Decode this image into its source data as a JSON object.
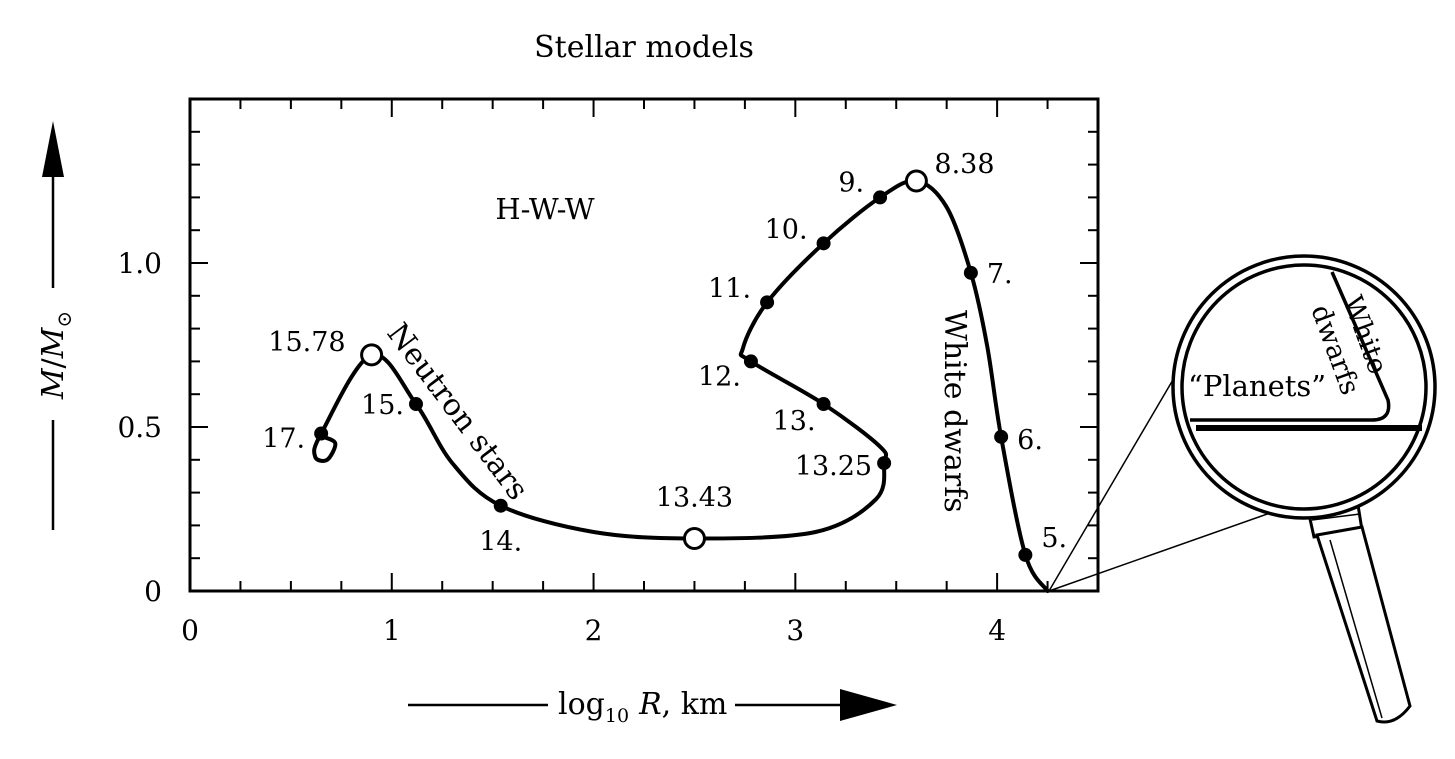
{
  "chart_data": {
    "type": "line",
    "title": "Stellar models",
    "model_label": "H-W-W",
    "xlabel": {
      "prefix": "log",
      "sub": "10",
      "var": "R",
      "unit": ", km"
    },
    "ylabel": {
      "var": "M",
      "slash": "/",
      "var2": "M",
      "sub": "⊙"
    },
    "xlim": [
      0,
      4.5
    ],
    "ylim": [
      0,
      1.5
    ],
    "x_ticks": [
      0,
      1,
      2,
      3,
      4
    ],
    "x_tick_labels": [
      "0",
      "1",
      "2",
      "3",
      "4"
    ],
    "y_ticks": [
      0,
      0.5,
      1.0
    ],
    "y_tick_labels": [
      "0",
      "0.5",
      "1.0"
    ],
    "x_minor_step": 0.25,
    "y_minor_step": 0.1,
    "curve": [
      [
        4.25,
        0.0
      ],
      [
        4.14,
        0.11
      ],
      [
        4.02,
        0.47
      ],
      [
        3.95,
        0.75
      ],
      [
        3.87,
        0.97
      ],
      [
        3.75,
        1.17
      ],
      [
        3.6,
        1.25
      ],
      [
        3.42,
        1.2
      ],
      [
        3.14,
        1.06
      ],
      [
        2.86,
        0.88
      ],
      [
        2.74,
        0.74
      ],
      [
        2.78,
        0.7
      ],
      [
        3.14,
        0.57
      ],
      [
        3.42,
        0.44
      ],
      [
        3.44,
        0.39
      ],
      [
        3.4,
        0.28
      ],
      [
        3.1,
        0.18
      ],
      [
        2.5,
        0.16
      ],
      [
        2.0,
        0.18
      ],
      [
        1.54,
        0.26
      ],
      [
        1.3,
        0.39
      ],
      [
        1.12,
        0.57
      ],
      [
        0.9,
        0.72
      ],
      [
        0.65,
        0.48
      ],
      [
        0.62,
        0.41
      ],
      [
        0.68,
        0.4
      ],
      [
        0.72,
        0.45
      ],
      [
        0.66,
        0.47
      ]
    ],
    "points": [
      {
        "label": "5.",
        "x": 4.14,
        "y": 0.11,
        "kind": "filled"
      },
      {
        "label": "6.",
        "x": 4.02,
        "y": 0.47,
        "kind": "filled"
      },
      {
        "label": "7.",
        "x": 3.87,
        "y": 0.97,
        "kind": "filled"
      },
      {
        "label": "8.38",
        "x": 3.6,
        "y": 1.25,
        "kind": "open"
      },
      {
        "label": "9.",
        "x": 3.42,
        "y": 1.2,
        "kind": "filled"
      },
      {
        "label": "10.",
        "x": 3.14,
        "y": 1.06,
        "kind": "filled"
      },
      {
        "label": "11.",
        "x": 2.86,
        "y": 0.88,
        "kind": "filled"
      },
      {
        "label": "12.",
        "x": 2.78,
        "y": 0.7,
        "kind": "filled"
      },
      {
        "label": "13.",
        "x": 3.14,
        "y": 0.57,
        "kind": "filled"
      },
      {
        "label": "13.25",
        "x": 3.44,
        "y": 0.39,
        "kind": "filled"
      },
      {
        "label": "13.43",
        "x": 2.5,
        "y": 0.16,
        "kind": "open"
      },
      {
        "label": "14.",
        "x": 1.54,
        "y": 0.26,
        "kind": "filled"
      },
      {
        "label": "15.",
        "x": 1.12,
        "y": 0.57,
        "kind": "filled"
      },
      {
        "label": "15.78",
        "x": 0.9,
        "y": 0.72,
        "kind": "open"
      },
      {
        "label": "17.",
        "x": 0.65,
        "y": 0.48,
        "kind": "filled"
      }
    ],
    "annotations": [
      "Neutron stars",
      "White dwarfs"
    ],
    "inset": {
      "labels": [
        "“Planets”",
        "White",
        "dwarfs"
      ]
    },
    "grid": false,
    "legend": "none"
  }
}
